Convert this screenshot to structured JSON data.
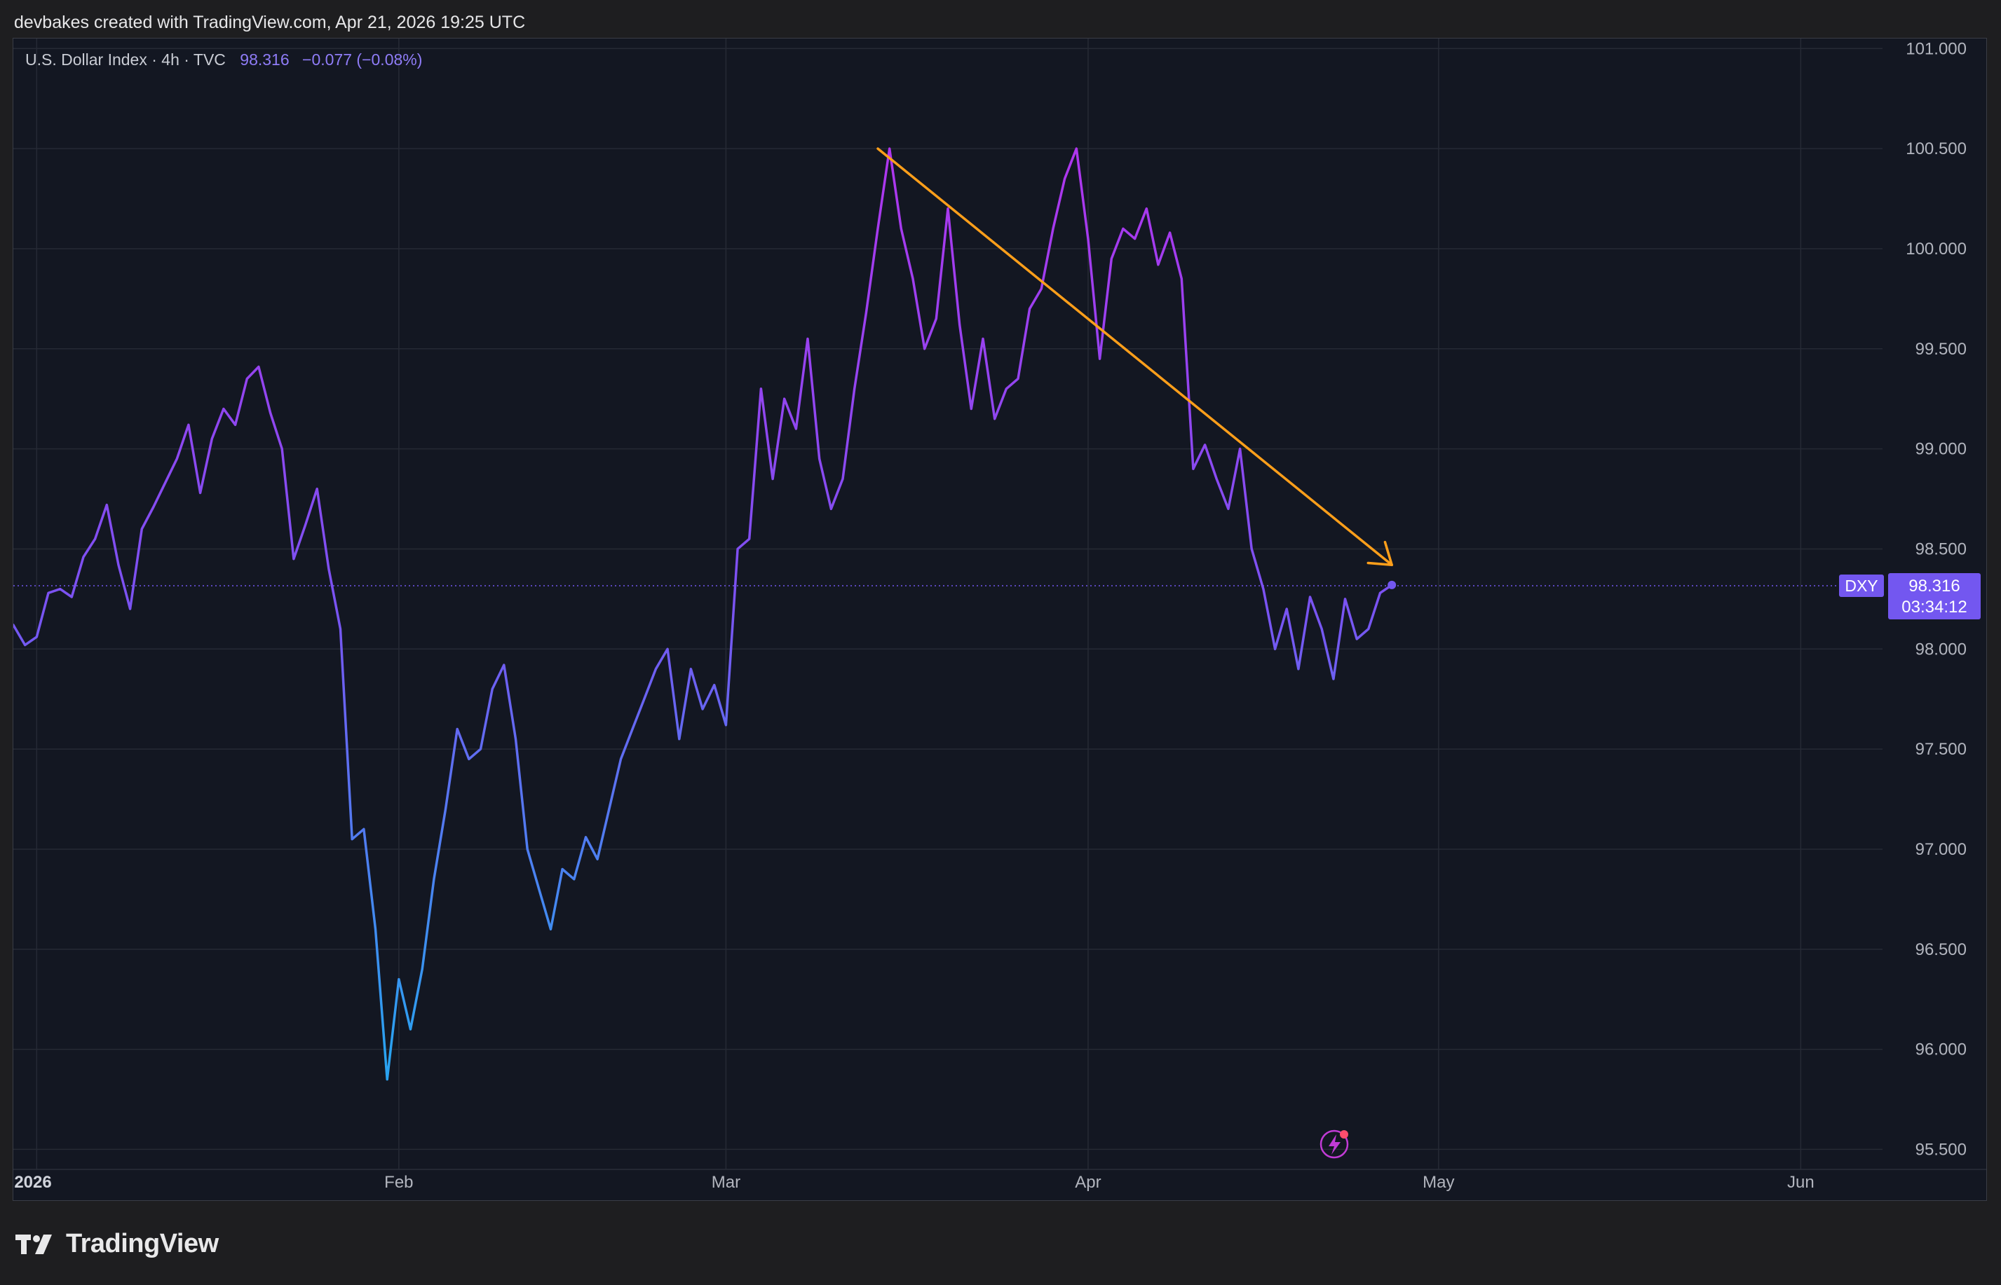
{
  "caption": "devbakes created with TradingView.com, Apr 21, 2026 19:25 UTC",
  "legend": {
    "symbol_text": "U.S. Dollar Index · 4h · TVC",
    "last_value": "98.316",
    "change": "−0.077 (−0.08%)"
  },
  "price_tag": {
    "ticker": "DXY",
    "value": "98.316",
    "countdown": "03:34:12"
  },
  "footer": {
    "brand": "TradingView"
  },
  "colors": {
    "background": "#131722",
    "grid": "#262a35",
    "axis_text": "#b2b5be",
    "line_low": "#2aa2f0",
    "line_mid": "#7b52f2",
    "line_high": "#b035ee",
    "trend_arrow": "#ff9f1a",
    "price_tag": "#7357f0"
  },
  "icons": {
    "logo": "tradingview-logo-icon",
    "alert": "lightning-alert-icon"
  },
  "chart_data": {
    "type": "line",
    "title": "",
    "xlabel": "",
    "ylabel": "",
    "x_range": [
      "2025-12-30",
      "2026-06-08"
    ],
    "ylim": [
      95.4,
      101.05
    ],
    "y_ticks": [
      "101.000",
      "100.500",
      "100.000",
      "99.500",
      "99.000",
      "98.500",
      "98.000",
      "97.500",
      "97.000",
      "96.500",
      "96.000",
      "95.500"
    ],
    "x_ticks": [
      {
        "date": "2026-01-01",
        "label": "2026",
        "bold": true
      },
      {
        "date": "2026-02-01",
        "label": "Feb"
      },
      {
        "date": "2026-03-01",
        "label": "Mar"
      },
      {
        "date": "2026-04-01",
        "label": "Apr"
      },
      {
        "date": "2026-05-01",
        "label": "May"
      },
      {
        "date": "2026-06-01",
        "label": "Jun"
      }
    ],
    "grid": true,
    "series": [
      {
        "name": "U.S. Dollar Index",
        "points": [
          [
            "2025-12-30",
            98.12
          ],
          [
            "2025-12-31",
            98.02
          ],
          [
            "2026-01-01",
            98.06
          ],
          [
            "2026-01-02",
            98.28
          ],
          [
            "2026-01-03",
            98.3
          ],
          [
            "2026-01-04",
            98.26
          ],
          [
            "2026-01-05",
            98.46
          ],
          [
            "2026-01-06",
            98.55
          ],
          [
            "2026-01-07",
            98.72
          ],
          [
            "2026-01-08",
            98.42
          ],
          [
            "2026-01-09",
            98.2
          ],
          [
            "2026-01-10",
            98.6
          ],
          [
            "2026-01-11",
            98.71
          ],
          [
            "2026-01-12",
            98.83
          ],
          [
            "2026-01-13",
            98.95
          ],
          [
            "2026-01-14",
            99.12
          ],
          [
            "2026-01-15",
            98.78
          ],
          [
            "2026-01-16",
            99.05
          ],
          [
            "2026-01-17",
            99.2
          ],
          [
            "2026-01-18",
            99.12
          ],
          [
            "2026-01-19",
            99.35
          ],
          [
            "2026-01-20",
            99.41
          ],
          [
            "2026-01-21",
            99.18
          ],
          [
            "2026-01-22",
            99.0
          ],
          [
            "2026-01-23",
            98.45
          ],
          [
            "2026-01-24",
            98.62
          ],
          [
            "2026-01-25",
            98.8
          ],
          [
            "2026-01-26",
            98.4
          ],
          [
            "2026-01-27",
            98.1
          ],
          [
            "2026-01-28",
            97.05
          ],
          [
            "2026-01-29",
            97.1
          ],
          [
            "2026-01-30",
            96.6
          ],
          [
            "2026-01-31",
            95.85
          ],
          [
            "2026-02-01",
            96.35
          ],
          [
            "2026-02-02",
            96.1
          ],
          [
            "2026-02-03",
            96.4
          ],
          [
            "2026-02-04",
            96.85
          ],
          [
            "2026-02-05",
            97.2
          ],
          [
            "2026-02-06",
            97.6
          ],
          [
            "2026-02-07",
            97.45
          ],
          [
            "2026-02-08",
            97.5
          ],
          [
            "2026-02-09",
            97.8
          ],
          [
            "2026-02-10",
            97.92
          ],
          [
            "2026-02-11",
            97.55
          ],
          [
            "2026-02-12",
            97.0
          ],
          [
            "2026-02-13",
            96.8
          ],
          [
            "2026-02-14",
            96.6
          ],
          [
            "2026-02-15",
            96.9
          ],
          [
            "2026-02-16",
            96.85
          ],
          [
            "2026-02-17",
            97.06
          ],
          [
            "2026-02-18",
            96.95
          ],
          [
            "2026-02-19",
            97.2
          ],
          [
            "2026-02-20",
            97.45
          ],
          [
            "2026-02-21",
            97.6
          ],
          [
            "2026-02-22",
            97.75
          ],
          [
            "2026-02-23",
            97.9
          ],
          [
            "2026-02-24",
            98.0
          ],
          [
            "2026-02-25",
            97.55
          ],
          [
            "2026-02-26",
            97.9
          ],
          [
            "2026-02-27",
            97.7
          ],
          [
            "2026-02-28",
            97.82
          ],
          [
            "2026-03-01",
            97.62
          ],
          [
            "2026-03-02",
            98.5
          ],
          [
            "2026-03-03",
            98.55
          ],
          [
            "2026-03-04",
            99.3
          ],
          [
            "2026-03-05",
            98.85
          ],
          [
            "2026-03-06",
            99.25
          ],
          [
            "2026-03-07",
            99.1
          ],
          [
            "2026-03-08",
            99.55
          ],
          [
            "2026-03-09",
            98.95
          ],
          [
            "2026-03-10",
            98.7
          ],
          [
            "2026-03-11",
            98.85
          ],
          [
            "2026-03-12",
            99.3
          ],
          [
            "2026-03-13",
            99.68
          ],
          [
            "2026-03-14",
            100.1
          ],
          [
            "2026-03-15",
            100.5
          ],
          [
            "2026-03-16",
            100.1
          ],
          [
            "2026-03-17",
            99.85
          ],
          [
            "2026-03-18",
            99.5
          ],
          [
            "2026-03-19",
            99.65
          ],
          [
            "2026-03-20",
            100.2
          ],
          [
            "2026-03-21",
            99.62
          ],
          [
            "2026-03-22",
            99.2
          ],
          [
            "2026-03-23",
            99.55
          ],
          [
            "2026-03-24",
            99.15
          ],
          [
            "2026-03-25",
            99.3
          ],
          [
            "2026-03-26",
            99.35
          ],
          [
            "2026-03-27",
            99.7
          ],
          [
            "2026-03-28",
            99.8
          ],
          [
            "2026-03-29",
            100.1
          ],
          [
            "2026-03-30",
            100.35
          ],
          [
            "2026-03-31",
            100.5
          ],
          [
            "2026-04-01",
            100.05
          ],
          [
            "2026-04-02",
            99.45
          ],
          [
            "2026-04-03",
            99.95
          ],
          [
            "2026-04-04",
            100.1
          ],
          [
            "2026-04-05",
            100.05
          ],
          [
            "2026-04-06",
            100.2
          ],
          [
            "2026-04-07",
            99.92
          ],
          [
            "2026-04-08",
            100.08
          ],
          [
            "2026-04-09",
            99.85
          ],
          [
            "2026-04-10",
            98.9
          ],
          [
            "2026-04-11",
            99.02
          ],
          [
            "2026-04-12",
            98.85
          ],
          [
            "2026-04-13",
            98.7
          ],
          [
            "2026-04-14",
            99.0
          ],
          [
            "2026-04-15",
            98.5
          ],
          [
            "2026-04-16",
            98.3
          ],
          [
            "2026-04-17",
            98.0
          ],
          [
            "2026-04-18",
            98.2
          ],
          [
            "2026-04-19",
            97.9
          ],
          [
            "2026-04-20",
            98.26
          ],
          [
            "2026-04-21",
            98.1
          ],
          [
            "2026-04-22",
            97.85
          ],
          [
            "2026-04-23",
            98.25
          ],
          [
            "2026-04-24",
            98.05
          ],
          [
            "2026-04-25",
            98.1
          ],
          [
            "2026-04-26",
            98.28
          ],
          [
            "2026-04-27",
            98.32
          ]
        ]
      }
    ],
    "annotations": [
      {
        "type": "arrow",
        "from": [
          "2026-03-14",
          100.5
        ],
        "to": [
          "2026-04-27",
          98.42
        ]
      }
    ],
    "last_price_line": 98.316
  }
}
